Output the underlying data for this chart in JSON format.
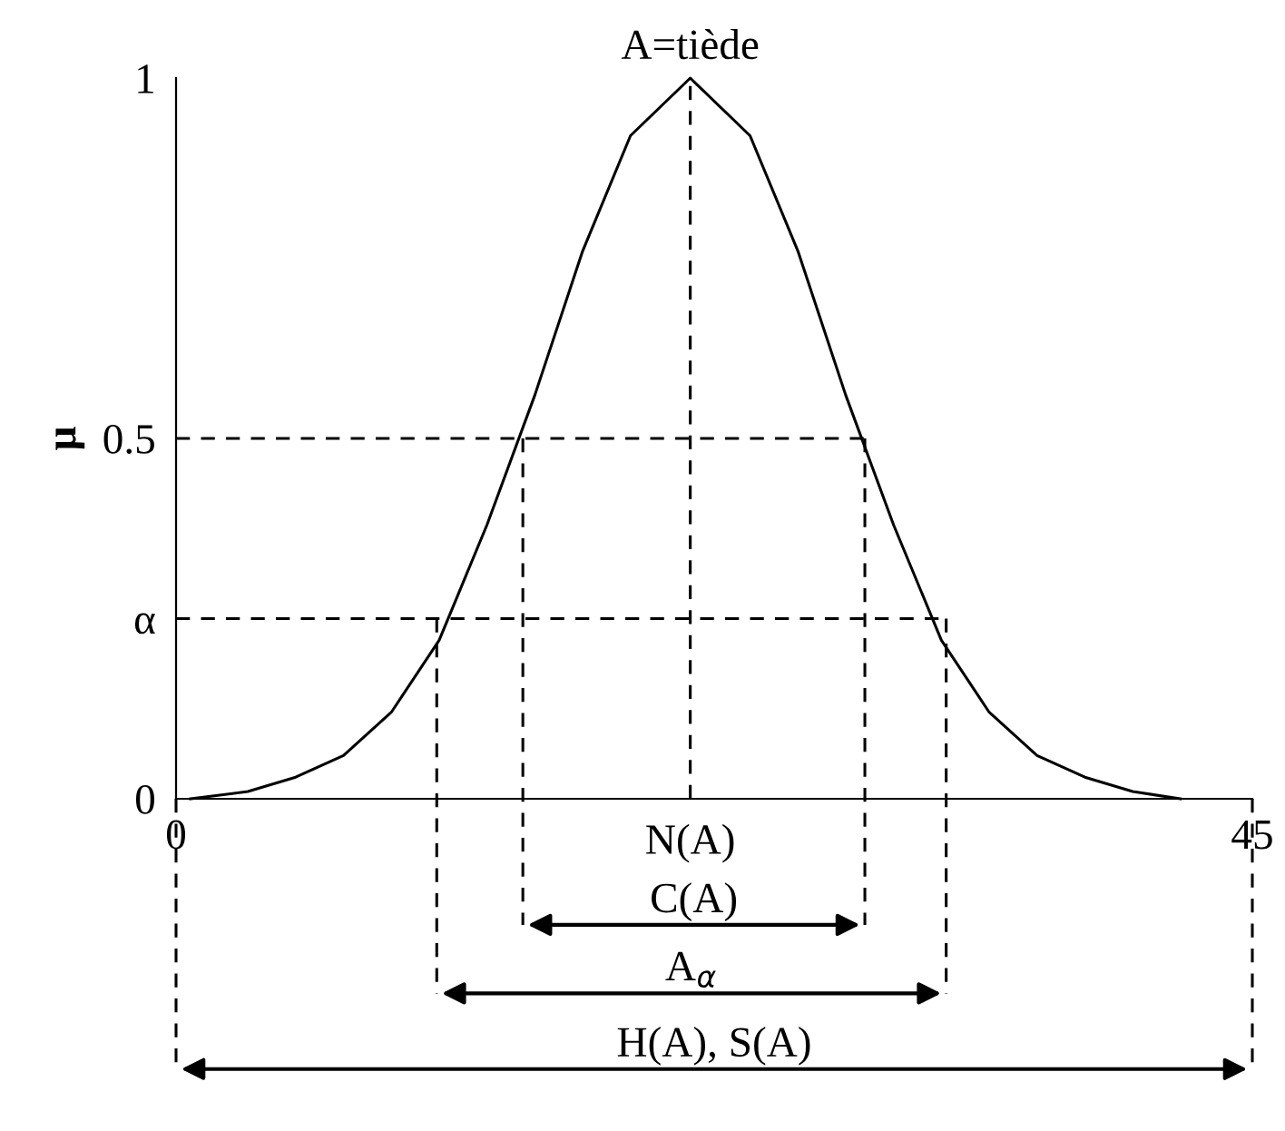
{
  "chart_data": {
    "type": "line",
    "ylabel": "μ",
    "xlim": [
      0,
      45
    ],
    "ylim": [
      0,
      1
    ],
    "xticks": [
      0,
      45
    ],
    "yticks": [
      0,
      {
        "value": 0.25,
        "label": "α"
      },
      0.5,
      1
    ],
    "grid": false,
    "legend": false,
    "marker": "none",
    "series": [
      {
        "color": "#000000",
        "line_style": "solid",
        "x": [
          0.6,
          3,
          5,
          7,
          9,
          11,
          13,
          15,
          17,
          19,
          21.5,
          24,
          26,
          28,
          30,
          32,
          34,
          36,
          38,
          40,
          42
        ],
        "values": [
          0.0,
          0.01,
          0.03,
          0.06,
          0.12,
          0.22,
          0.38,
          0.56,
          0.76,
          0.92,
          1.0,
          0.92,
          0.76,
          0.56,
          0.38,
          0.22,
          0.12,
          0.06,
          0.03,
          0.01,
          0.0
        ]
      },
      {
        "color": "#000000",
        "line_style": "dashed",
        "x": [
          21.5,
          21.5
        ],
        "values": [
          0,
          1
        ]
      },
      {
        "color": "#000000",
        "line_style": "dashed",
        "x": [
          0,
          28.8
        ],
        "values": [
          0.5,
          0.5
        ]
      },
      {
        "color": "#000000",
        "line_style": "dashed",
        "x": [
          14.5,
          14.5
        ],
        "values": [
          0.5,
          0
        ]
      },
      {
        "color": "#000000",
        "line_style": "dashed",
        "x": [
          28.8,
          28.8
        ],
        "values": [
          0.5,
          0
        ]
      },
      {
        "color": "#000000",
        "line_style": "dashed",
        "x": [
          0,
          32.2
        ],
        "values": [
          0.25,
          0.25
        ]
      },
      {
        "color": "#000000",
        "line_style": "dashed",
        "x": [
          10.9,
          10.9
        ],
        "values": [
          0.25,
          0
        ]
      },
      {
        "color": "#000000",
        "line_style": "dashed",
        "x": [
          32.2,
          32.2
        ],
        "values": [
          0.25,
          0
        ]
      }
    ],
    "annotations": [
      {
        "text": "A=tiède",
        "x": 21.5,
        "y": 1
      },
      {
        "text": "N(A)",
        "x": 21.5,
        "y": 0
      },
      "C(A)",
      "A$_{α}$",
      "H(A), S(A)"
    ]
  }
}
